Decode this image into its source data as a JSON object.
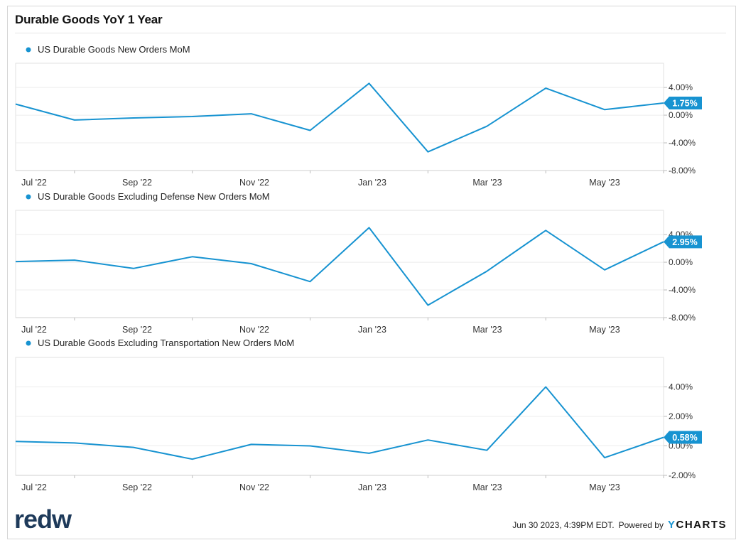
{
  "title": "Durable Goods YoY 1 Year",
  "footer": {
    "timestamp": "Jun 30 2023, 4:39PM EDT.",
    "powered_by": "Powered by",
    "brand_y": "Y",
    "brand_rest": "CHARTS",
    "logo": "redw"
  },
  "colors": {
    "series": "#1793d1",
    "grid": "#e8e8e8",
    "axis": "#bdbdbd"
  },
  "chart_data": [
    {
      "type": "line",
      "legend": "US Durable Goods New Orders MoM",
      "x": [
        "2022-06",
        "2022-07",
        "2022-08",
        "2022-09",
        "2022-10",
        "2022-11",
        "2022-12",
        "2023-01",
        "2023-02",
        "2023-03",
        "2023-04",
        "2023-05"
      ],
      "series": [
        {
          "name": "US Durable Goods New Orders MoM",
          "values": [
            1.6,
            -0.7,
            -0.4,
            -0.2,
            0.2,
            -2.2,
            4.6,
            -5.3,
            -1.6,
            3.9,
            0.8,
            1.75
          ]
        }
      ],
      "yticks": [
        4.0,
        0.0,
        -4.0,
        -8.0
      ],
      "ytick_labels": [
        "4.00%",
        "0.00%",
        "-4.00%",
        "-8.00%"
      ],
      "ylim": [
        -8.0,
        7.5
      ],
      "xticks": [
        "Jul '22",
        "Sep '22",
        "Nov '22",
        "Jan '23",
        "Mar '23",
        "May '23"
      ],
      "last_label": "1.75%"
    },
    {
      "type": "line",
      "legend": "US Durable Goods Excluding Defense New Orders MoM",
      "x": [
        "2022-06",
        "2022-07",
        "2022-08",
        "2022-09",
        "2022-10",
        "2022-11",
        "2022-12",
        "2023-01",
        "2023-02",
        "2023-03",
        "2023-04",
        "2023-05"
      ],
      "series": [
        {
          "name": "US Durable Goods Excluding Defense New Orders MoM",
          "values": [
            0.1,
            0.3,
            -0.9,
            0.8,
            -0.2,
            -2.8,
            5.0,
            -6.2,
            -1.3,
            4.6,
            -1.1,
            2.95
          ]
        }
      ],
      "yticks": [
        4.0,
        0.0,
        -4.0,
        -8.0
      ],
      "ytick_labels": [
        "4.00%",
        "0.00%",
        "-4.00%",
        "-8.00%"
      ],
      "ylim": [
        -8.0,
        7.5
      ],
      "xticks": [
        "Jul '22",
        "Sep '22",
        "Nov '22",
        "Jan '23",
        "Mar '23",
        "May '23"
      ],
      "last_label": "2.95%"
    },
    {
      "type": "line",
      "legend": "US Durable Goods Excluding Transportation New Orders MoM",
      "x": [
        "2022-06",
        "2022-07",
        "2022-08",
        "2022-09",
        "2022-10",
        "2022-11",
        "2022-12",
        "2023-01",
        "2023-02",
        "2023-03",
        "2023-04",
        "2023-05"
      ],
      "series": [
        {
          "name": "US Durable Goods Excluding Transportation New Orders MoM",
          "values": [
            0.3,
            0.2,
            -0.1,
            -0.9,
            0.1,
            0.0,
            -0.5,
            0.4,
            -0.3,
            4.0,
            -0.8,
            0.58
          ]
        }
      ],
      "yticks": [
        4.0,
        2.0,
        0.0,
        -2.0
      ],
      "ytick_labels": [
        "4.00%",
        "2.00%",
        "0.00%",
        "-2.00%"
      ],
      "ylim": [
        -2.0,
        6.0
      ],
      "xticks": [
        "Jul '22",
        "Sep '22",
        "Nov '22",
        "Jan '23",
        "Mar '23",
        "May '23"
      ],
      "last_label": "0.58%"
    }
  ]
}
